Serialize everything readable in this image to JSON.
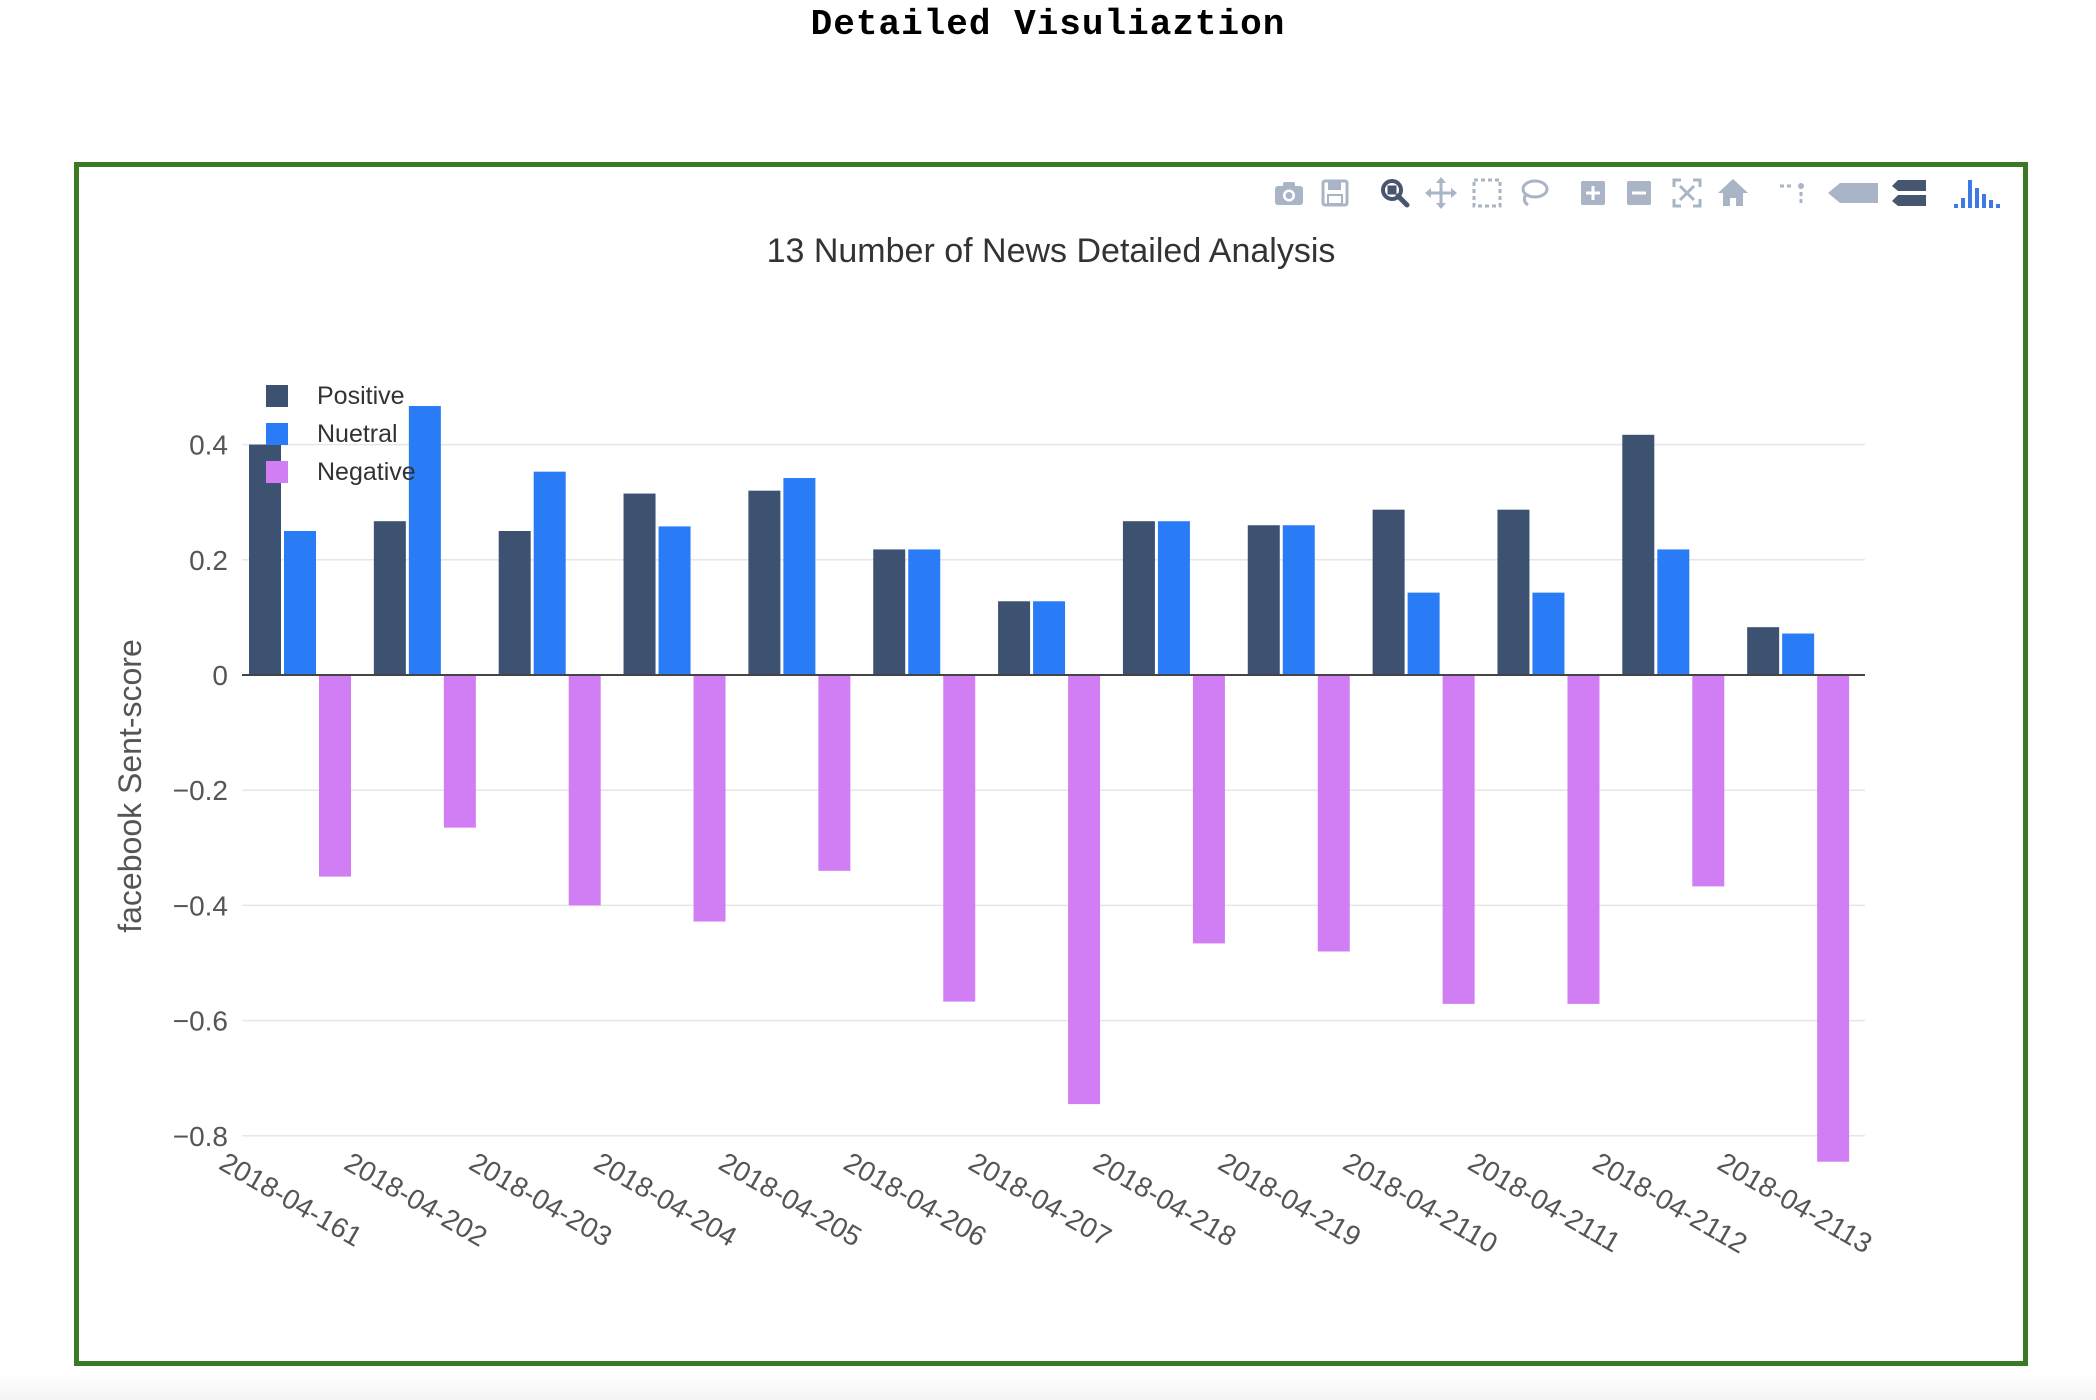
{
  "page": {
    "heading": "Detailed Visuliaztion"
  },
  "toolbar": {
    "buttons": [
      {
        "icon": "camera-icon"
      },
      {
        "icon": "save-icon"
      },
      {
        "icon": "zoom-icon"
      },
      {
        "icon": "pan-icon"
      },
      {
        "icon": "box-select-icon"
      },
      {
        "icon": "lasso-select-icon"
      },
      {
        "icon": "zoom-in-icon"
      },
      {
        "icon": "zoom-out-icon"
      },
      {
        "icon": "autoscale-icon"
      },
      {
        "icon": "reset-axes-icon"
      },
      {
        "icon": "spike-lines-icon"
      },
      {
        "icon": "hover-closest-icon"
      },
      {
        "icon": "hover-compare-icon"
      },
      {
        "icon": "plotly-logo-icon"
      }
    ]
  },
  "colors": {
    "frame_border": "#3b7a25",
    "positive": "#3d5170",
    "neutral": "#2a7cf6",
    "negative": "#d17ef4",
    "grid": "#e6e6e6",
    "axis_text": "#555555",
    "title_text": "#333333"
  },
  "chart_data": {
    "type": "bar",
    "title": "13 Number of News Detailed Analysis",
    "xlabel": "",
    "ylabel": "facebook Sent-score",
    "ylim": [
      -0.9,
      0.48
    ],
    "yticks": [
      0.4,
      0.2,
      0,
      -0.2,
      -0.4,
      -0.6,
      -0.8
    ],
    "ytick_labels": [
      "0.4",
      "0.2",
      "0",
      "−0.2",
      "−0.4",
      "−0.6",
      "−0.8"
    ],
    "grid": true,
    "legend_position": "top-left",
    "categories": [
      "2018-04-161",
      "2018-04-202",
      "2018-04-203",
      "2018-04-204",
      "2018-04-205",
      "2018-04-206",
      "2018-04-207",
      "2018-04-218",
      "2018-04-219",
      "2018-04-2110",
      "2018-04-2111",
      "2018-04-2112",
      "2018-04-2113"
    ],
    "series": [
      {
        "name": "Positive",
        "color": "#3d5170",
        "values": [
          0.4,
          0.267,
          0.25,
          0.315,
          0.32,
          0.218,
          0.128,
          0.267,
          0.26,
          0.287,
          0.287,
          0.417,
          0.083
        ]
      },
      {
        "name": "Nuetral",
        "color": "#2a7cf6",
        "values": [
          0.25,
          0.467,
          0.353,
          0.258,
          0.342,
          0.218,
          0.128,
          0.267,
          0.26,
          0.143,
          0.143,
          0.218,
          0.072
        ]
      },
      {
        "name": "Negative",
        "color": "#d17ef4",
        "values": [
          -0.35,
          -0.265,
          -0.4,
          -0.428,
          -0.34,
          -0.567,
          -0.745,
          -0.466,
          -0.48,
          -0.571,
          -0.571,
          -0.367,
          -0.845
        ]
      }
    ]
  }
}
